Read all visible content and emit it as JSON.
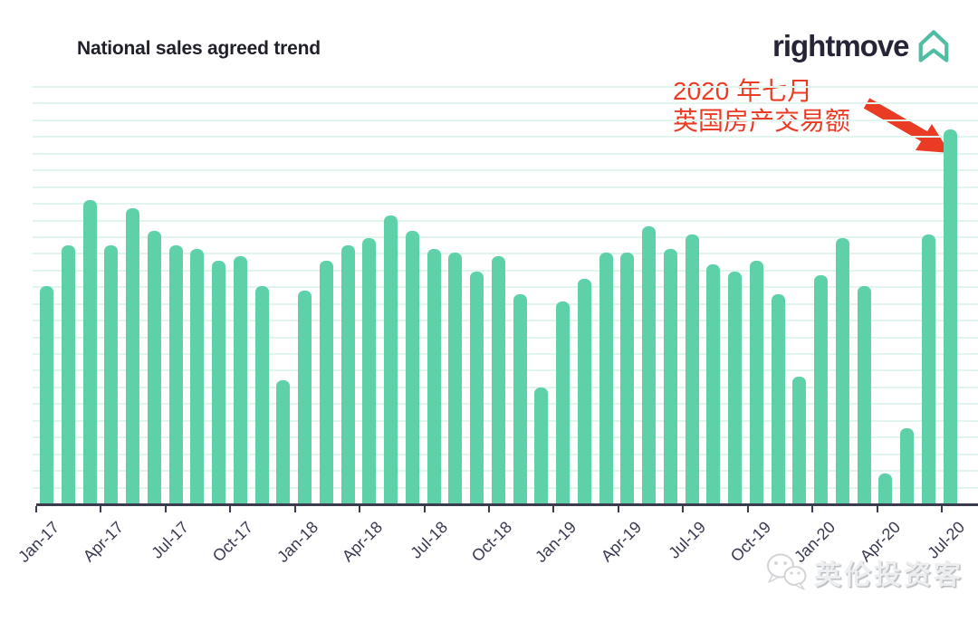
{
  "header": {
    "title": "National sales agreed trend",
    "logo": {
      "text": "rightmove",
      "icon": "rightmove-house-icon",
      "icon_color": "#4ebda1",
      "text_color": "#262437"
    }
  },
  "annotation": {
    "line1": "2020 年七月",
    "line2": "英国房产交易额",
    "color": "#ea3b25",
    "arrow_target": "Jul-20 bar"
  },
  "watermark": {
    "icon": "wechat-icon",
    "text": "英伦投资客"
  },
  "chart_data": {
    "type": "bar",
    "title": "National sales agreed trend",
    "xlabel": "",
    "ylabel": "",
    "y_axis_labels": "none shown",
    "value_scale": "relative index, Jul-20 peak = 100 (chart has no numeric y-axis)",
    "ylim": [
      0,
      108
    ],
    "grid": "horizontal gridlines only",
    "legend": "none",
    "bar_color": "#5fd1a9",
    "gridline_color": "#e1f5ec",
    "axis_color": "#3a3b4c",
    "categories": [
      "Jan-17",
      "Feb-17",
      "Mar-17",
      "Apr-17",
      "May-17",
      "Jun-17",
      "Jul-17",
      "Aug-17",
      "Sep-17",
      "Oct-17",
      "Nov-17",
      "Dec-17",
      "Jan-18",
      "Feb-18",
      "Mar-18",
      "Apr-18",
      "May-18",
      "Jun-18",
      "Jul-18",
      "Aug-18",
      "Sep-18",
      "Oct-18",
      "Nov-18",
      "Dec-18",
      "Jan-19",
      "Feb-19",
      "Mar-19",
      "Apr-19",
      "May-19",
      "Jun-19",
      "Jul-19",
      "Aug-19",
      "Sep-19",
      "Oct-19",
      "Nov-19",
      "Dec-19",
      "Jan-20",
      "Feb-20",
      "Mar-20",
      "Apr-20",
      "May-20",
      "Jun-20",
      "Jul-20"
    ],
    "values": [
      58,
      69,
      81,
      69,
      79,
      73,
      69,
      68,
      65,
      66,
      58,
      33,
      57,
      65,
      69,
      71,
      77,
      73,
      68,
      67,
      62,
      66,
      56,
      31,
      54,
      60,
      67,
      67,
      74,
      68,
      72,
      64,
      62,
      65,
      56,
      34,
      61,
      71,
      58,
      8,
      20,
      72,
      100
    ],
    "x_tick_labels": [
      "Jan-17",
      "Apr-17",
      "Jul-17",
      "Oct-17",
      "Jan-18",
      "Apr-18",
      "Jul-18",
      "Oct-18",
      "Jan-19",
      "Apr-19",
      "Jul-19",
      "Oct-19",
      "Jan-20",
      "Apr-20",
      "Jul-20"
    ]
  }
}
